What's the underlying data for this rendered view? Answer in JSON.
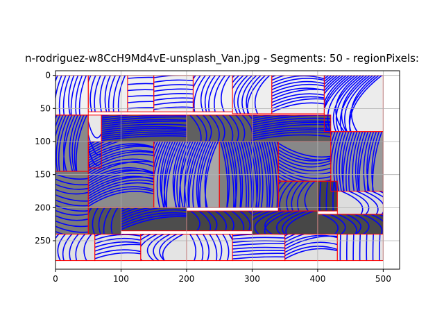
{
  "chart_data": {
    "type": "image",
    "title": "...n-rodriguez-w8CcH9Md4vE-unsplash_Van.jpg - Segments: 50 - regionPixels: ...",
    "title_shown": "n-rodriguez-w8CcH9Md4vE-unsplash_Van.jpg - Segments: 50 - regionPixels:",
    "xlabel": "",
    "ylabel": "",
    "xlim": [
      0,
      525
    ],
    "ylim": [
      293,
      -7
    ],
    "y_inverted": true,
    "grid": true,
    "x_ticks": [
      0,
      100,
      200,
      300,
      400,
      500
    ],
    "y_ticks": [
      0,
      50,
      100,
      150,
      200,
      250
    ],
    "image_extent": {
      "x": [
        0,
        500
      ],
      "y": [
        0,
        280
      ]
    },
    "boundary_color": "#ff0000",
    "streamline_color": "#0000ff",
    "regions": [
      {
        "x": [
          0,
          50
        ],
        "y": [
          0,
          60
        ],
        "fill": "#f2f2f2"
      },
      {
        "x": [
          50,
          110
        ],
        "y": [
          0,
          55
        ],
        "fill": "#efefef"
      },
      {
        "x": [
          110,
          150
        ],
        "y": [
          0,
          55
        ],
        "fill": "#f0f0f0"
      },
      {
        "x": [
          150,
          210
        ],
        "y": [
          0,
          55
        ],
        "fill": "#efefef"
      },
      {
        "x": [
          210,
          270
        ],
        "y": [
          0,
          55
        ],
        "fill": "#f2f2f2"
      },
      {
        "x": [
          270,
          330
        ],
        "y": [
          0,
          58
        ],
        "fill": "#eeeeee"
      },
      {
        "x": [
          330,
          410
        ],
        "y": [
          0,
          58
        ],
        "fill": "#efefef"
      },
      {
        "x": [
          410,
          500
        ],
        "y": [
          0,
          85
        ],
        "fill": "#ececec"
      },
      {
        "x": [
          0,
          50
        ],
        "y": [
          60,
          145
        ],
        "fill": "#8a8a8a"
      },
      {
        "x": [
          50,
          70
        ],
        "y": [
          60,
          140
        ],
        "fill": "#e8e8e8"
      },
      {
        "x": [
          70,
          200
        ],
        "y": [
          60,
          100
        ],
        "fill": "#5a5a5a"
      },
      {
        "x": [
          200,
          300
        ],
        "y": [
          60,
          100
        ],
        "fill": "#606060"
      },
      {
        "x": [
          300,
          420
        ],
        "y": [
          60,
          100
        ],
        "fill": "#5c5c5c"
      },
      {
        "x": [
          420,
          500
        ],
        "y": [
          85,
          175
        ],
        "fill": "#9a9a9a"
      },
      {
        "x": [
          50,
          150
        ],
        "y": [
          100,
          200
        ],
        "fill": "#8c8c8c"
      },
      {
        "x": [
          150,
          250
        ],
        "y": [
          100,
          200
        ],
        "fill": "#a8a8a8"
      },
      {
        "x": [
          250,
          340
        ],
        "y": [
          100,
          200
        ],
        "fill": "#7e7e7e"
      },
      {
        "x": [
          340,
          420
        ],
        "y": [
          100,
          160
        ],
        "fill": "#888888"
      },
      {
        "x": [
          340,
          400
        ],
        "y": [
          160,
          205
        ],
        "fill": "#6a6a6a"
      },
      {
        "x": [
          400,
          430
        ],
        "y": [
          160,
          205
        ],
        "fill": "#444444"
      },
      {
        "x": [
          0,
          50
        ],
        "y": [
          145,
          240
        ],
        "fill": "#7a7a7a"
      },
      {
        "x": [
          430,
          500
        ],
        "y": [
          175,
          210
        ],
        "fill": "#dddddd"
      },
      {
        "x": [
          50,
          100
        ],
        "y": [
          200,
          240
        ],
        "fill": "#555555"
      },
      {
        "x": [
          100,
          200
        ],
        "y": [
          200,
          235
        ],
        "fill": "#4d4d4d"
      },
      {
        "x": [
          200,
          300
        ],
        "y": [
          205,
          235
        ],
        "fill": "#454545"
      },
      {
        "x": [
          300,
          400
        ],
        "y": [
          205,
          240
        ],
        "fill": "#474747"
      },
      {
        "x": [
          400,
          500
        ],
        "y": [
          210,
          240
        ],
        "fill": "#4a4a4a"
      },
      {
        "x": [
          0,
          60
        ],
        "y": [
          240,
          280
        ],
        "fill": "#e2e2e2"
      },
      {
        "x": [
          60,
          130
        ],
        "y": [
          240,
          280
        ],
        "fill": "#e6e6e6"
      },
      {
        "x": [
          130,
          200
        ],
        "y": [
          240,
          280
        ],
        "fill": "#e4e4e4"
      },
      {
        "x": [
          200,
          270
        ],
        "y": [
          240,
          280
        ],
        "fill": "#e8e8e8"
      },
      {
        "x": [
          270,
          350
        ],
        "y": [
          240,
          280
        ],
        "fill": "#e6e6e6"
      },
      {
        "x": [
          350,
          430
        ],
        "y": [
          240,
          280
        ],
        "fill": "#e2e2e2"
      },
      {
        "x": [
          430,
          500
        ],
        "y": [
          240,
          280
        ],
        "fill": "#e5e5e5"
      }
    ]
  }
}
